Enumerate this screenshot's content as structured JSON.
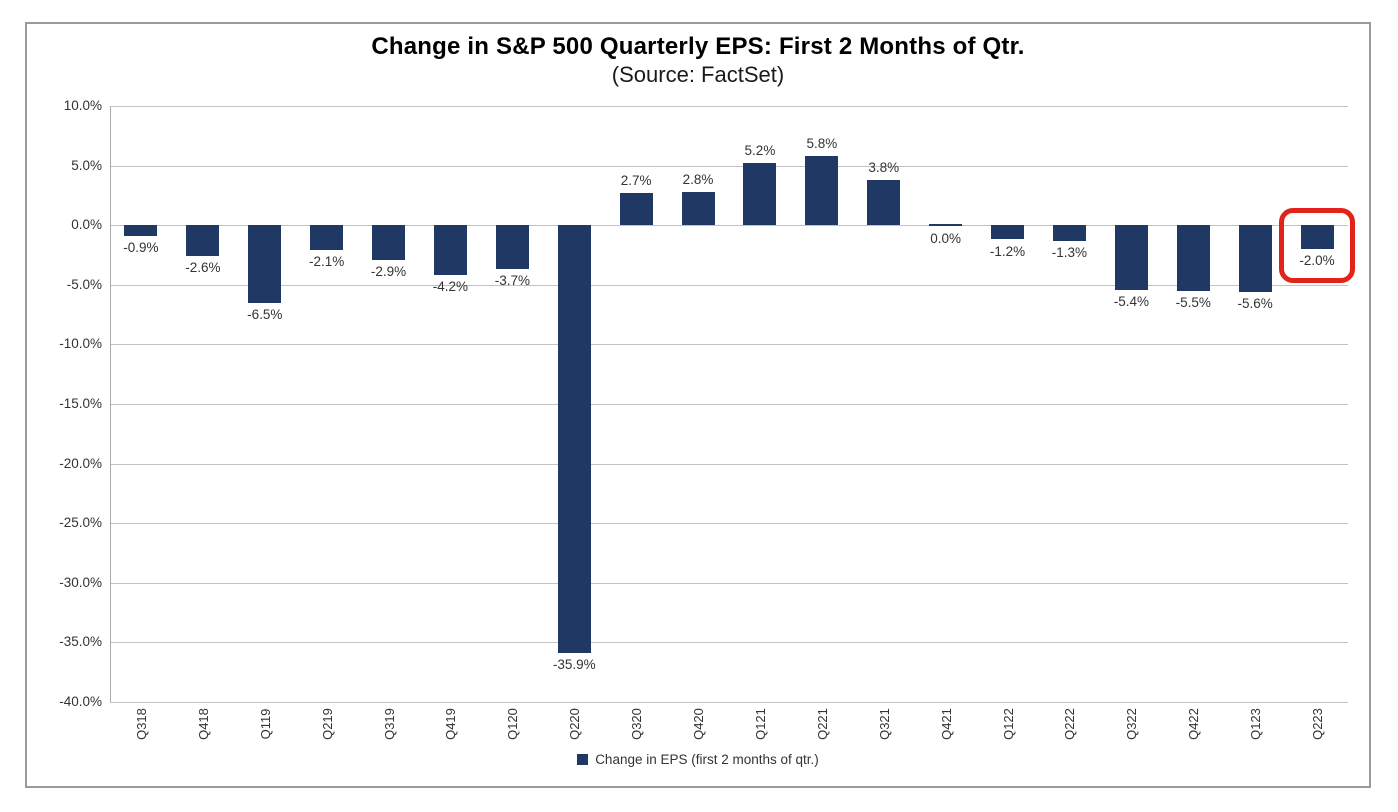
{
  "chart_data": {
    "type": "bar",
    "title": "Change in S&P 500 Quarterly EPS: First 2 Months of Qtr.",
    "subtitle": "(Source: FactSet)",
    "categories": [
      "Q318",
      "Q418",
      "Q119",
      "Q219",
      "Q319",
      "Q419",
      "Q120",
      "Q220",
      "Q320",
      "Q420",
      "Q121",
      "Q221",
      "Q321",
      "Q421",
      "Q122",
      "Q222",
      "Q322",
      "Q422",
      "Q123",
      "Q223"
    ],
    "values": [
      -0.9,
      -2.6,
      -6.5,
      -2.1,
      -2.9,
      -4.2,
      -3.7,
      -35.9,
      2.7,
      2.8,
      5.2,
      5.8,
      3.8,
      0.0,
      -1.2,
      -1.3,
      -5.4,
      -5.5,
      -5.6,
      -2.0
    ],
    "value_labels": [
      "-0.9%",
      "-2.6%",
      "-6.5%",
      "-2.1%",
      "-2.9%",
      "-4.2%",
      "-3.7%",
      "-35.9%",
      "2.7%",
      "2.8%",
      "5.2%",
      "5.8%",
      "3.8%",
      "0.0%",
      "-1.2%",
      "-1.3%",
      "-5.4%",
      "-5.5%",
      "-5.6%",
      "-2.0%"
    ],
    "xlabel": "",
    "ylabel": "",
    "ylim": [
      -40,
      10
    ],
    "ytick_values": [
      10,
      5,
      0,
      -5,
      -10,
      -15,
      -20,
      -25,
      -30,
      -35,
      -40
    ],
    "ytick_labels": [
      "10.0%",
      "5.0%",
      "0.0%",
      "-5.0%",
      "-10.0%",
      "-15.0%",
      "-20.0%",
      "-25.0%",
      "-30.0%",
      "-35.0%",
      "-40.0%"
    ],
    "grid": true,
    "legend": "Change in EPS (first 2 months of qtr.)",
    "legend_position": "bottom",
    "highlight": {
      "index": 19,
      "label": "-2.0%",
      "shape": "red-rounded-box"
    },
    "colors": {
      "bar": "#1F3864",
      "gridline": "#C2C2C2",
      "axis_line": "#ABABAB",
      "text": "#333333",
      "highlight_box": "#E2231A",
      "frame_border": "#9A9A9A"
    }
  }
}
